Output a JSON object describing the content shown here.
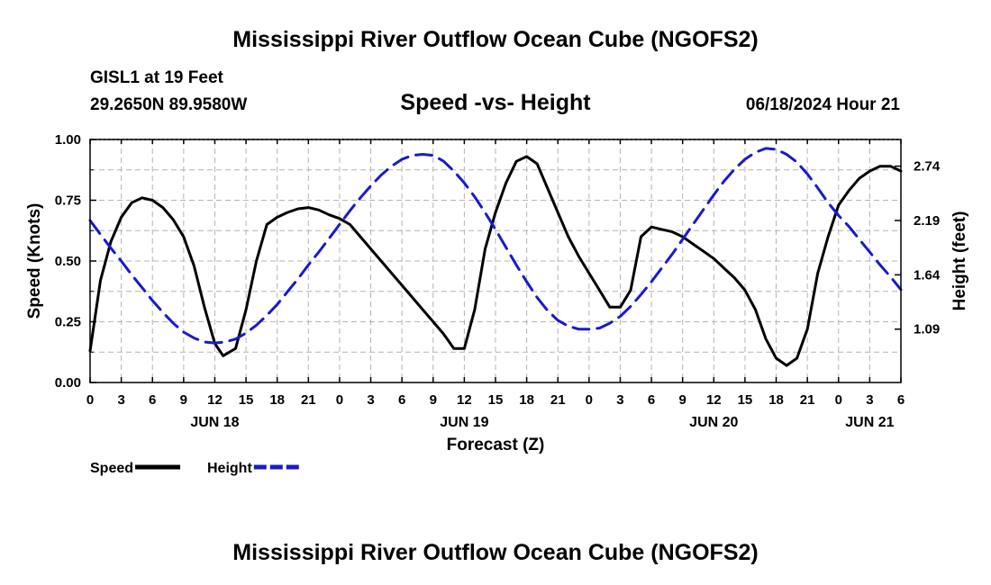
{
  "header": {
    "main_title": "Mississippi River Outflow Ocean Cube (NGOFS2)",
    "station": "GISL1 at 19 Feet",
    "coords": "29.2650N  89.9580W",
    "subtitle": "Speed -vs- Height",
    "datetime": "06/18/2024 Hour 21"
  },
  "bottom_title": "Mississippi River Outflow Ocean Cube (NGOFS2)",
  "colors": {
    "speed": "#000000",
    "height": "#1a1acc",
    "grid": "#b4b4b4"
  },
  "chart_data": {
    "type": "line",
    "xlabel": "Forecast (Z)",
    "ylabel_left": "Speed (Knots)",
    "ylabel_right": "Height (feet)",
    "x_unit": "hours since 06/18/2024 00Z",
    "xlim": [
      0,
      78
    ],
    "ylim_left": [
      0,
      1.0
    ],
    "ylim_right": [
      0.55,
      3.01
    ],
    "x_ticks": [
      0,
      3,
      6,
      9,
      12,
      15,
      18,
      21,
      24,
      27,
      30,
      33,
      36,
      39,
      42,
      45,
      48,
      51,
      54,
      57,
      60,
      63,
      66,
      69,
      72,
      75,
      78
    ],
    "x_tick_labels": [
      "0",
      "3",
      "6",
      "9",
      "12",
      "15",
      "18",
      "21",
      "0",
      "3",
      "6",
      "9",
      "12",
      "15",
      "18",
      "21",
      "0",
      "3",
      "6",
      "9",
      "12",
      "15",
      "18",
      "21",
      "0",
      "3",
      "6"
    ],
    "day_labels": [
      {
        "x": 12,
        "label": "JUN 18"
      },
      {
        "x": 36,
        "label": "JUN 19"
      },
      {
        "x": 60,
        "label": "JUN 20"
      },
      {
        "x": 75,
        "label": "JUN 21"
      }
    ],
    "left_ticks": [
      0,
      0.25,
      0.5,
      0.75,
      1.0
    ],
    "left_tick_labels": [
      "0.00",
      "0.25",
      "0.50",
      "0.75",
      "1.00"
    ],
    "right_ticks": [
      1.09,
      1.64,
      2.19,
      2.74
    ],
    "right_tick_labels": [
      "1.09",
      "1.64",
      "2.19",
      "2.74"
    ],
    "grid": true,
    "legend": {
      "position": "bottom-left",
      "entries": [
        {
          "name": "Speed",
          "style": "solid"
        },
        {
          "name": "Height",
          "style": "dashed"
        }
      ]
    },
    "series": [
      {
        "name": "Speed",
        "axis": "left",
        "style": "solid",
        "x": [
          0,
          1,
          2,
          3,
          4,
          5,
          6,
          7,
          8,
          9,
          10,
          11,
          12,
          12.8,
          14,
          15,
          16,
          17,
          18,
          19,
          20,
          21,
          22,
          23,
          24,
          25,
          26,
          27,
          28,
          29,
          30,
          31,
          32,
          33,
          34,
          35,
          36,
          37,
          38,
          39,
          40,
          41,
          42,
          43,
          44,
          45,
          46,
          47,
          48,
          49,
          50,
          51,
          52,
          53,
          54,
          55,
          56,
          57,
          58,
          59,
          60,
          61,
          62,
          63,
          64,
          65,
          66,
          67,
          68,
          69,
          70,
          71,
          72,
          73,
          74,
          75,
          76,
          77,
          78
        ],
        "values": [
          0.13,
          0.42,
          0.58,
          0.68,
          0.74,
          0.76,
          0.75,
          0.72,
          0.67,
          0.6,
          0.48,
          0.31,
          0.16,
          0.11,
          0.14,
          0.3,
          0.5,
          0.65,
          0.68,
          0.7,
          0.715,
          0.72,
          0.71,
          0.69,
          0.675,
          0.65,
          0.6,
          0.55,
          0.5,
          0.45,
          0.4,
          0.35,
          0.3,
          0.25,
          0.2,
          0.14,
          0.14,
          0.3,
          0.55,
          0.7,
          0.82,
          0.91,
          0.93,
          0.9,
          0.8,
          0.7,
          0.6,
          0.52,
          0.45,
          0.38,
          0.31,
          0.31,
          0.38,
          0.6,
          0.64,
          0.63,
          0.62,
          0.6,
          0.57,
          0.54,
          0.51,
          0.47,
          0.43,
          0.38,
          0.3,
          0.18,
          0.1,
          0.07,
          0.1,
          0.22,
          0.45,
          0.6,
          0.73,
          0.79,
          0.84,
          0.87,
          0.89,
          0.89,
          0.87
        ]
      },
      {
        "name": "Height",
        "axis": "right",
        "style": "dashed",
        "x": [
          0,
          1,
          2,
          3,
          4,
          5,
          6,
          7,
          8,
          9,
          10,
          11,
          12,
          13,
          14,
          15,
          16,
          17,
          18,
          19,
          20,
          21,
          22,
          23,
          24,
          25,
          26,
          27,
          28,
          29,
          30,
          31,
          32,
          33,
          34,
          35,
          36,
          37,
          38,
          39,
          40,
          41,
          42,
          43,
          44,
          45,
          46,
          47,
          48,
          49,
          50,
          51,
          52,
          53,
          54,
          55,
          56,
          57,
          58,
          59,
          60,
          61,
          62,
          63,
          64,
          65,
          66,
          67,
          68,
          69,
          70,
          71,
          72,
          73,
          74,
          75,
          76,
          77,
          78
        ],
        "values": [
          2.19,
          2.05,
          1.91,
          1.78,
          1.64,
          1.51,
          1.38,
          1.26,
          1.15,
          1.06,
          1.0,
          0.96,
          0.95,
          0.96,
          0.99,
          1.05,
          1.13,
          1.23,
          1.34,
          1.47,
          1.6,
          1.74,
          1.87,
          2.01,
          2.15,
          2.29,
          2.42,
          2.54,
          2.65,
          2.74,
          2.81,
          2.85,
          2.86,
          2.85,
          2.79,
          2.69,
          2.57,
          2.43,
          2.27,
          2.1,
          1.92,
          1.74,
          1.57,
          1.41,
          1.28,
          1.18,
          1.12,
          1.09,
          1.09,
          1.1,
          1.15,
          1.22,
          1.32,
          1.44,
          1.57,
          1.71,
          1.85,
          2.0,
          2.15,
          2.3,
          2.45,
          2.59,
          2.71,
          2.81,
          2.88,
          2.92,
          2.91,
          2.86,
          2.78,
          2.66,
          2.52,
          2.37,
          2.24,
          2.13,
          2.0,
          1.87,
          1.74,
          1.62,
          1.49
        ]
      }
    ]
  }
}
